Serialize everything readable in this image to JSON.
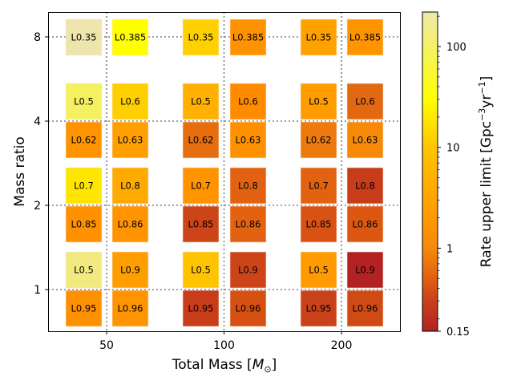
{
  "chart_data": {
    "type": "heatmap",
    "xlabel": "Total Mass [M⊙]",
    "ylabel": "Mass ratio",
    "xscale": "log",
    "yscale": "log",
    "xticks": [
      50,
      100,
      200
    ],
    "xtick_labels": [
      "50",
      "100",
      "200"
    ],
    "yticks": [
      1,
      2,
      4,
      8
    ],
    "ytick_labels": [
      "1",
      "2",
      "4",
      "8"
    ],
    "grid": "dotted at major ticks",
    "colorbar": {
      "label": "Rate upper limit [Gpc⁻³yr⁻¹]",
      "scale": "log",
      "range": [
        0.15,
        220
      ],
      "ticks": [
        0.15,
        1,
        10,
        100
      ],
      "tick_labels": [
        "0.15",
        "1",
        "10",
        "100"
      ],
      "stops": [
        {
          "value": 0.15,
          "color": "#b22222"
        },
        {
          "value": 0.3,
          "color": "#c8401a"
        },
        {
          "value": 0.5,
          "color": "#e06010"
        },
        {
          "value": 1,
          "color": "#f58a0a"
        },
        {
          "value": 2,
          "color": "#ff9900"
        },
        {
          "value": 10,
          "color": "#ffc400"
        },
        {
          "value": 30,
          "color": "#ffff00"
        },
        {
          "value": 220,
          "color": "#eee8aa"
        }
      ]
    },
    "columns": [
      "c1",
      "c2",
      "c3",
      "c4",
      "c5",
      "c6"
    ],
    "rows": [
      {
        "cells": [
          {
            "label": "L0.35",
            "value": 200,
            "color": "#ede5ab"
          },
          {
            "label": "L0.385",
            "value": 30,
            "color": "#ffff00"
          },
          {
            "label": "L0.35",
            "value": 12,
            "color": "#ffd000"
          },
          {
            "label": "L0.385",
            "value": 1.6,
            "color": "#ff9200"
          },
          {
            "label": "L0.35",
            "value": 2.5,
            "color": "#ffa200"
          },
          {
            "label": "L0.385",
            "value": 1.8,
            "color": "#ff9400"
          }
        ]
      },
      {
        "cells": [
          {
            "label": "L0.5",
            "value": 60,
            "color": "#f5f060"
          },
          {
            "label": "L0.6",
            "value": 12,
            "color": "#ffd000"
          },
          {
            "label": "L0.5",
            "value": 5,
            "color": "#ffb000"
          },
          {
            "label": "L0.6",
            "value": 1.3,
            "color": "#ff8c00"
          },
          {
            "label": "L0.5",
            "value": 2.2,
            "color": "#ff9c00"
          },
          {
            "label": "L0.6",
            "value": 0.5,
            "color": "#e26812"
          }
        ]
      },
      {
        "cells": [
          {
            "label": "L0.62",
            "value": 1.8,
            "color": "#ff9400"
          },
          {
            "label": "L0.63",
            "value": 2.5,
            "color": "#ffa000"
          },
          {
            "label": "L0.62",
            "value": 0.55,
            "color": "#e66e0e"
          },
          {
            "label": "L0.63",
            "value": 1.6,
            "color": "#ff9000"
          },
          {
            "label": "L0.62",
            "value": 0.7,
            "color": "#ec7a0e"
          },
          {
            "label": "L0.63",
            "value": 1.1,
            "color": "#f68a08"
          }
        ]
      },
      {
        "cells": [
          {
            "label": "L0.7",
            "value": 20,
            "color": "#ffe600"
          },
          {
            "label": "L0.8",
            "value": 4,
            "color": "#ffaa00"
          },
          {
            "label": "L0.7",
            "value": 2,
            "color": "#ff9400"
          },
          {
            "label": "L0.8",
            "value": 0.55,
            "color": "#e26212"
          },
          {
            "label": "L0.7",
            "value": 0.55,
            "color": "#e26212"
          },
          {
            "label": "L0.8",
            "value": 0.3,
            "color": "#c83c1a"
          }
        ]
      },
      {
        "cells": [
          {
            "label": "L0.85",
            "value": 1.6,
            "color": "#ff9000"
          },
          {
            "label": "L0.86",
            "value": 1.8,
            "color": "#ff9400"
          },
          {
            "label": "L0.85",
            "value": 0.35,
            "color": "#cc4418"
          },
          {
            "label": "L0.86",
            "value": 0.55,
            "color": "#e26212"
          },
          {
            "label": "L0.85",
            "value": 0.45,
            "color": "#d85214"
          },
          {
            "label": "L0.86",
            "value": 0.5,
            "color": "#dc5812"
          }
        ]
      },
      {
        "cells": [
          {
            "label": "L0.5",
            "value": 150,
            "color": "#f2ea80"
          },
          {
            "label": "L0.9",
            "value": 2.5,
            "color": "#ff9e00"
          },
          {
            "label": "L0.5",
            "value": 8,
            "color": "#ffc400"
          },
          {
            "label": "L0.9",
            "value": 0.35,
            "color": "#cc4418"
          },
          {
            "label": "L0.5",
            "value": 2.2,
            "color": "#ff9a00"
          },
          {
            "label": "L0.9",
            "value": 0.18,
            "color": "#b22222"
          }
        ]
      },
      {
        "cells": [
          {
            "label": "L0.95",
            "value": 1.6,
            "color": "#ff9000"
          },
          {
            "label": "L0.96",
            "value": 1.8,
            "color": "#ff9400"
          },
          {
            "label": "L0.95",
            "value": 0.3,
            "color": "#c83c1a"
          },
          {
            "label": "L0.96",
            "value": 0.45,
            "color": "#d65012"
          },
          {
            "label": "L0.95",
            "value": 0.33,
            "color": "#ca421a"
          },
          {
            "label": "L0.96",
            "value": 0.4,
            "color": "#d04a16"
          }
        ]
      }
    ]
  }
}
